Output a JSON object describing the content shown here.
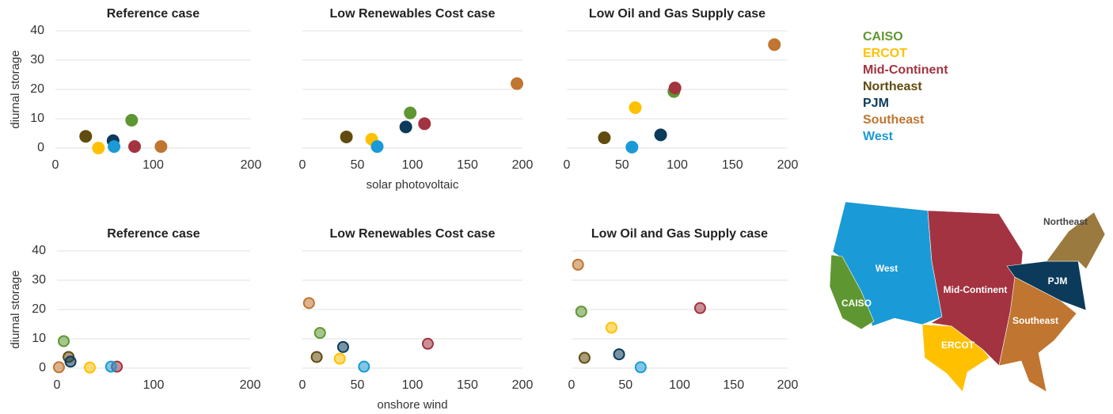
{
  "chart_data": [
    {
      "type": "scatter",
      "title": "Reference case",
      "ylabel": "diurnal storage",
      "xlim": [
        0,
        200
      ],
      "ylim": [
        0,
        40
      ],
      "xticks": [
        0,
        100,
        200
      ],
      "yticks": [
        0,
        10,
        20,
        30,
        40
      ],
      "grid": true,
      "show_ytick_labels": true,
      "marker_outline": false,
      "legend": "right",
      "series": [
        {
          "name": "CAISO",
          "color": "#5e9732",
          "x": [
            78
          ],
          "values": [
            9.5
          ]
        },
        {
          "name": "ERCOT",
          "color": "#ffc000",
          "x": [
            44
          ],
          "values": [
            0
          ]
        },
        {
          "name": "Mid-Continent",
          "color": "#a33340",
          "x": [
            81
          ],
          "values": [
            0.5
          ]
        },
        {
          "name": "Northeast",
          "color": "#614b0e",
          "x": [
            31
          ],
          "values": [
            4
          ]
        },
        {
          "name": "PJM",
          "color": "#0b3a5a",
          "x": [
            59
          ],
          "values": [
            2.5
          ]
        },
        {
          "name": "Southeast",
          "color": "#c07530",
          "x": [
            108
          ],
          "values": [
            0.5
          ]
        },
        {
          "name": "West",
          "color": "#1a9ad6",
          "x": [
            60
          ],
          "values": [
            0.5
          ]
        }
      ]
    },
    {
      "type": "scatter",
      "title": "Low Renewables Cost case",
      "xlabel": "solar photovoltaic",
      "xlim": [
        0,
        200
      ],
      "ylim": [
        0,
        40
      ],
      "xticks": [
        0,
        50,
        100,
        150,
        200
      ],
      "yticks": [
        0,
        10,
        20,
        30,
        40
      ],
      "grid": true,
      "show_ytick_labels": false,
      "marker_outline": false,
      "series": [
        {
          "name": "CAISO",
          "color": "#5e9732",
          "x": [
            98
          ],
          "values": [
            12
          ]
        },
        {
          "name": "ERCOT",
          "color": "#ffc000",
          "x": [
            63
          ],
          "values": [
            3
          ]
        },
        {
          "name": "Mid-Continent",
          "color": "#a33340",
          "x": [
            111
          ],
          "values": [
            8.3
          ]
        },
        {
          "name": "Northeast",
          "color": "#614b0e",
          "x": [
            40
          ],
          "values": [
            3.8
          ]
        },
        {
          "name": "PJM",
          "color": "#0b3a5a",
          "x": [
            94
          ],
          "values": [
            7.2
          ]
        },
        {
          "name": "Southeast",
          "color": "#c07530",
          "x": [
            195
          ],
          "values": [
            22
          ]
        },
        {
          "name": "West",
          "color": "#1a9ad6",
          "x": [
            68
          ],
          "values": [
            0.5
          ]
        }
      ]
    },
    {
      "type": "scatter",
      "title": "Low Oil and Gas Supply case",
      "xlim": [
        0,
        200
      ],
      "ylim": [
        0,
        40
      ],
      "xticks": [
        0,
        50,
        100,
        150,
        200
      ],
      "yticks": [
        0,
        10,
        20,
        30,
        40
      ],
      "grid": true,
      "show_ytick_labels": false,
      "marker_outline": false,
      "series": [
        {
          "name": "CAISO",
          "color": "#5e9732",
          "x": [
            97
          ],
          "values": [
            19.3
          ]
        },
        {
          "name": "ERCOT",
          "color": "#ffc000",
          "x": [
            62
          ],
          "values": [
            13.8
          ]
        },
        {
          "name": "Mid-Continent",
          "color": "#a33340",
          "x": [
            98
          ],
          "values": [
            20.5
          ]
        },
        {
          "name": "Northeast",
          "color": "#614b0e",
          "x": [
            34
          ],
          "values": [
            3.5
          ]
        },
        {
          "name": "PJM",
          "color": "#0b3a5a",
          "x": [
            85
          ],
          "values": [
            4.5
          ]
        },
        {
          "name": "Southeast",
          "color": "#c07530",
          "x": [
            188
          ],
          "values": [
            35.3
          ]
        },
        {
          "name": "West",
          "color": "#1a9ad6",
          "x": [
            59
          ],
          "values": [
            0.3
          ]
        }
      ]
    },
    {
      "type": "scatter",
      "title": "Reference case",
      "ylabel": "diurnal storage",
      "xlim": [
        0,
        200
      ],
      "ylim": [
        0,
        40
      ],
      "xticks": [
        0,
        100,
        200
      ],
      "yticks": [
        0,
        10,
        20,
        30,
        40
      ],
      "grid": true,
      "show_ytick_labels": true,
      "marker_outline": true,
      "series": [
        {
          "name": "CAISO",
          "color": "#5e9732",
          "x": [
            7
          ],
          "values": [
            9.2
          ]
        },
        {
          "name": "ERCOT",
          "color": "#ffc000",
          "x": [
            34
          ],
          "values": [
            0.2
          ]
        },
        {
          "name": "Mid-Continent",
          "color": "#a33340",
          "x": [
            62
          ],
          "values": [
            0.5
          ]
        },
        {
          "name": "Northeast",
          "color": "#614b0e",
          "x": [
            12
          ],
          "values": [
            3.8
          ]
        },
        {
          "name": "PJM",
          "color": "#0b3a5a",
          "x": [
            14
          ],
          "values": [
            2.2
          ]
        },
        {
          "name": "Southeast",
          "color": "#c07530",
          "x": [
            2
          ],
          "values": [
            0.3
          ]
        },
        {
          "name": "West",
          "color": "#1a9ad6",
          "x": [
            56
          ],
          "values": [
            0.5
          ]
        }
      ]
    },
    {
      "type": "scatter",
      "title": "Low Renewables Cost case",
      "xlabel": "onshore wind",
      "xlim": [
        0,
        200
      ],
      "ylim": [
        0,
        40
      ],
      "xticks": [
        0,
        50,
        100,
        150,
        200
      ],
      "yticks": [
        0,
        10,
        20,
        30,
        40
      ],
      "grid": true,
      "show_ytick_labels": false,
      "marker_outline": true,
      "series": [
        {
          "name": "CAISO",
          "color": "#5e9732",
          "x": [
            16
          ],
          "values": [
            12
          ]
        },
        {
          "name": "ERCOT",
          "color": "#ffc000",
          "x": [
            34
          ],
          "values": [
            3.2
          ]
        },
        {
          "name": "Mid-Continent",
          "color": "#a33340",
          "x": [
            114
          ],
          "values": [
            8.3
          ]
        },
        {
          "name": "Northeast",
          "color": "#614b0e",
          "x": [
            13
          ],
          "values": [
            3.8
          ]
        },
        {
          "name": "PJM",
          "color": "#0b3a5a",
          "x": [
            37
          ],
          "values": [
            7.2
          ]
        },
        {
          "name": "Southeast",
          "color": "#c07530",
          "x": [
            6
          ],
          "values": [
            22.2
          ]
        },
        {
          "name": "West",
          "color": "#1a9ad6",
          "x": [
            56
          ],
          "values": [
            0.5
          ]
        }
      ]
    },
    {
      "type": "scatter",
      "title": "Low Oil and Gas Supply case",
      "xlim": [
        0,
        200
      ],
      "ylim": [
        0,
        40
      ],
      "xticks": [
        0,
        50,
        100,
        150,
        200
      ],
      "yticks": [
        0,
        10,
        20,
        30,
        40
      ],
      "grid": true,
      "show_ytick_labels": false,
      "marker_outline": true,
      "series": [
        {
          "name": "CAISO",
          "color": "#5e9732",
          "x": [
            9
          ],
          "values": [
            19.3
          ]
        },
        {
          "name": "ERCOT",
          "color": "#ffc000",
          "x": [
            37
          ],
          "values": [
            13.8
          ]
        },
        {
          "name": "Mid-Continent",
          "color": "#a33340",
          "x": [
            119
          ],
          "values": [
            20.5
          ]
        },
        {
          "name": "Northeast",
          "color": "#614b0e",
          "x": [
            12
          ],
          "values": [
            3.5
          ]
        },
        {
          "name": "PJM",
          "color": "#0b3a5a",
          "x": [
            44
          ],
          "values": [
            4.7
          ]
        },
        {
          "name": "Southeast",
          "color": "#c07530",
          "x": [
            6
          ],
          "values": [
            35.3
          ]
        },
        {
          "name": "West",
          "color": "#1a9ad6",
          "x": [
            64
          ],
          "values": [
            0.3
          ]
        }
      ]
    }
  ]
}
